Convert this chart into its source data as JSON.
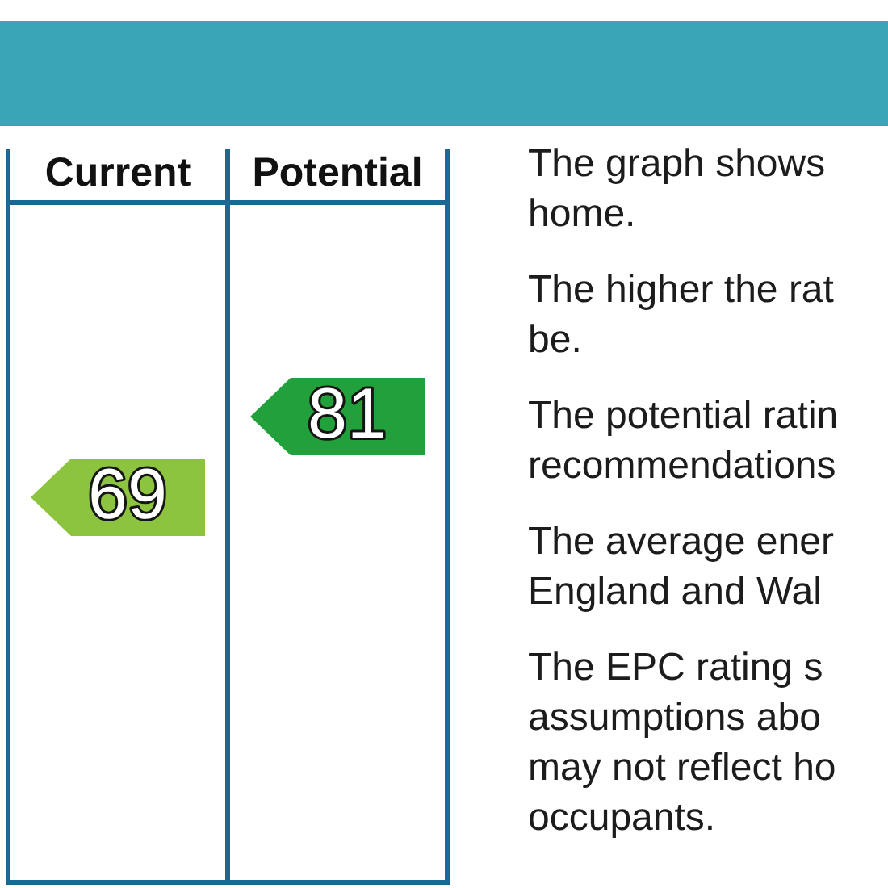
{
  "chart_data": {
    "type": "other",
    "categories": [
      "Current",
      "Potential"
    ],
    "values": [
      69,
      81
    ],
    "colors": [
      "#8cc43f",
      "#22a03c"
    ],
    "data_labels": true,
    "annotations": [
      "The graph shows\nhome.",
      "The higher the rat\nbe.",
      "The potential ratin\nrecommendations",
      "The average ener\nEngland and Wal",
      "The EPC rating s\nassumptions abo\nmay not reflect ho\noccupants."
    ]
  }
}
